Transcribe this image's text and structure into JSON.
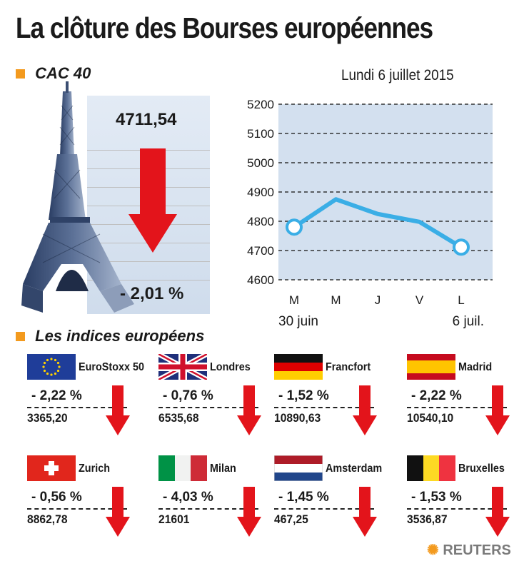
{
  "title": "La clôture des Bourses européennes",
  "date": "Lundi 6 juillet 2015",
  "cac": {
    "label": "CAC 40",
    "value": "4711,54",
    "change": "- 2,01 %"
  },
  "indices_section_label": "Les indices européens",
  "chart_data": {
    "type": "line",
    "x": [
      "M",
      "M",
      "J",
      "V",
      "L"
    ],
    "x_sublabels": [
      "30 juin",
      "6 juil."
    ],
    "values": [
      4780,
      4875,
      4825,
      4798,
      4711.54
    ],
    "ylim": [
      4600,
      5200
    ],
    "yticks": [
      "4600",
      "4700",
      "4800",
      "4900",
      "5000",
      "5100",
      "5200"
    ],
    "grid": true,
    "line_color": "#3aaee6",
    "background": "#d3e0ef"
  },
  "indices": [
    {
      "name": "EuroStoxx 50",
      "change": "- 2,22  %",
      "value": "3365,20",
      "flag": "eu-flag"
    },
    {
      "name": "Londres",
      "change": "- 0,76  %",
      "value": "6535,68",
      "flag": "uk-flag"
    },
    {
      "name": "Francfort",
      "change": "- 1,52  %",
      "value": "10890,63",
      "flag": "germany-flag"
    },
    {
      "name": "Madrid",
      "change": "- 2,22  %",
      "value": "10540,10",
      "flag": "spain-flag"
    },
    {
      "name": "Zurich",
      "change": "- 0,56  %",
      "value": "8862,78",
      "flag": "switzerland-flag"
    },
    {
      "name": "Milan",
      "change": "- 4,03  %",
      "value": "21601",
      "flag": "italy-flag"
    },
    {
      "name": "Amsterdam",
      "change": "- 1,45  %",
      "value": "467,25",
      "flag": "netherlands-flag"
    },
    {
      "name": "Bruxelles",
      "change": "- 1,53  %",
      "value": "3536,87",
      "flag": "belgium-flag"
    }
  ],
  "colors": {
    "accent": "#f39a1e",
    "down_arrow": "#e3141b",
    "chart_line": "#3aaee6"
  },
  "source": "REUTERS"
}
